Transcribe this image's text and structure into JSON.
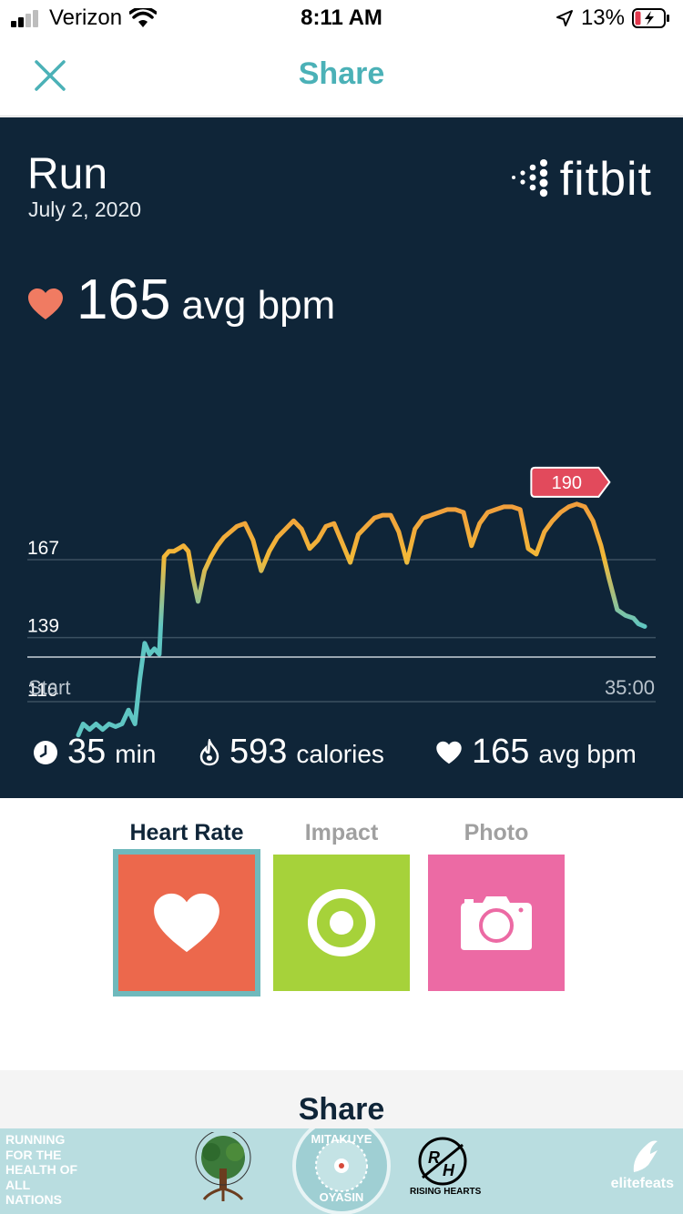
{
  "status_bar": {
    "carrier": "Verizon",
    "time": "8:11 AM",
    "battery": "13%"
  },
  "nav": {
    "title": "Share",
    "close_icon": "close-icon"
  },
  "card": {
    "activity": "Run",
    "date": "July 2, 2020",
    "brand": "fitbit",
    "avg_value": "165",
    "avg_unit": "avg bpm",
    "peak_label": "190",
    "x_start": "Start",
    "x_end": "35:00",
    "stats": [
      {
        "icon": "clock-icon",
        "value": "35",
        "label": "min"
      },
      {
        "icon": "flame-icon",
        "value": "593",
        "label": "calories"
      },
      {
        "icon": "heart-icon",
        "value": "165",
        "label": "avg bpm"
      }
    ]
  },
  "chart_data": {
    "type": "line",
    "x_label_start": "Start",
    "x_label_end": "35:00",
    "yticks": [
      116,
      139,
      167
    ],
    "ylim": [
      90,
      205
    ],
    "xlim": [
      0,
      35
    ],
    "peak_marker": {
      "label": "190",
      "y": 190
    },
    "x": [
      0.0,
      0.3,
      0.7,
      1.1,
      1.5,
      1.9,
      2.3,
      2.7,
      3.1,
      3.5,
      3.8,
      4.1,
      4.4,
      4.7,
      5.0,
      5.3,
      5.6,
      5.9,
      6.2,
      6.5,
      6.8,
      7.1,
      7.4,
      7.8,
      8.2,
      8.6,
      9.0,
      9.4,
      9.8,
      10.3,
      10.8,
      11.3,
      11.8,
      12.3,
      12.8,
      13.3,
      13.8,
      14.3,
      14.8,
      15.3,
      15.8,
      16.3,
      16.8,
      17.3,
      17.8,
      18.3,
      18.8,
      19.3,
      19.8,
      20.3,
      20.8,
      21.3,
      21.8,
      22.3,
      22.8,
      23.3,
      23.8,
      24.3,
      24.8,
      25.3,
      25.8,
      26.3,
      26.8,
      27.3,
      27.8,
      28.3,
      28.8,
      29.3,
      29.8,
      30.3,
      30.8,
      31.3,
      31.8,
      32.3,
      32.8,
      33.3,
      33.8,
      34.3,
      34.6,
      35.0
    ],
    "y": [
      104,
      108,
      106,
      108,
      106,
      108,
      107,
      108,
      113,
      108,
      124,
      137,
      133,
      135,
      133,
      168,
      170,
      170,
      171,
      172,
      170,
      160,
      152,
      163,
      168,
      172,
      175,
      177,
      179,
      180,
      174,
      163,
      170,
      175,
      178,
      181,
      178,
      171,
      174,
      179,
      180,
      173,
      166,
      176,
      179,
      182,
      183,
      183,
      177,
      166,
      178,
      182,
      183,
      184,
      185,
      185,
      184,
      172,
      180,
      184,
      185,
      186,
      186,
      185,
      171,
      169,
      177,
      181,
      184,
      186,
      187,
      186,
      181,
      172,
      160,
      149,
      147,
      146,
      144,
      143
    ]
  },
  "tabs": [
    {
      "label": "Heart Rate",
      "icon": "heart-icon",
      "color": "#ec684c",
      "selected": true
    },
    {
      "label": "Impact",
      "icon": "target-icon",
      "color": "#a6d23a",
      "selected": false
    },
    {
      "label": "Photo",
      "icon": "camera-icon",
      "color": "#ec6aa4",
      "selected": false
    }
  ],
  "share_panel": {
    "title": "Share"
  },
  "banner": {
    "left_text": "RUNNING FOR THE HEALTH OF ALL NATIONS",
    "center_text_top": "MITAKUYE",
    "center_text_bottom": "OYASIN",
    "rh_caption": "RISING HEARTS",
    "right_text": "elitefeats"
  },
  "colors": {
    "accent": "#4bb1b7",
    "card_bg": "#0f2538",
    "heart": "#f07b62",
    "peak": "#e24a5c"
  }
}
